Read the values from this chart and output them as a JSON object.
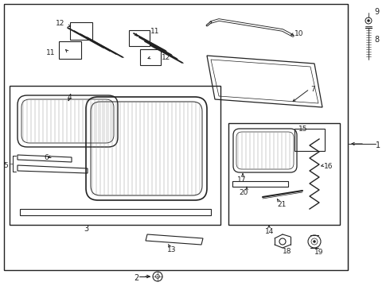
{
  "bg_color": "#ffffff",
  "line_color": "#222222",
  "fig_width": 4.9,
  "fig_height": 3.6,
  "dpi": 100
}
